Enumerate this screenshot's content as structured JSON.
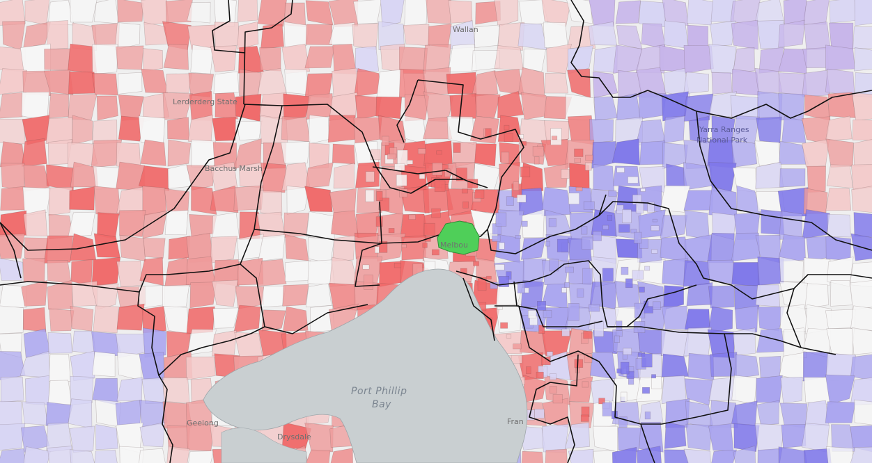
{
  "map": {
    "colors": {
      "background": "#efefef",
      "water": "#c9cfd1",
      "red_strong": "#f06a6a",
      "red_mid": "#ee9b9b",
      "red_light": "#f3c9c9",
      "blue_strong": "#7f78ea",
      "blue_mid": "#a9a4ef",
      "blue_light": "#d7d4f4",
      "purple": "#c7b5ea",
      "green": "#4fcf59",
      "white": "#f6f6f6"
    },
    "labels": {
      "lerderderg": "Lerderderg State",
      "bacchus_marsh": "Bacchus Marsh",
      "yarra_ranges_1": "Yarra Ranges",
      "yarra_ranges_2": "National Park",
      "port_phillip_1": "Port Phillip",
      "port_phillip_2": "Bay",
      "melbourne": "Melbou",
      "geelong": "Geelong",
      "drysdale": "Drysdale",
      "frankston": "Fran",
      "wallan": "Wallan"
    }
  }
}
